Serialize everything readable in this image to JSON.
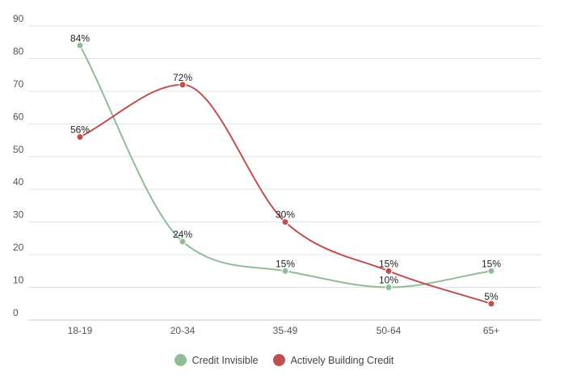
{
  "chart_data": {
    "type": "line",
    "categories": [
      "18-19",
      "20-34",
      "35-49",
      "50-64",
      "65+"
    ],
    "ylim": [
      0,
      90
    ],
    "yticks": [
      0,
      10,
      20,
      30,
      40,
      50,
      60,
      70,
      80,
      90
    ],
    "grid": true,
    "legend_position": "bottom",
    "series": [
      {
        "name": "Credit Invisible",
        "color": "#8fbc9a",
        "values": [
          84,
          24,
          15,
          10,
          15
        ],
        "labels": [
          "84%",
          "24%",
          "15%",
          "10%",
          "15%"
        ]
      },
      {
        "name": "Actively Building Credit",
        "color": "#c0504d",
        "values": [
          56,
          72,
          30,
          15,
          5
        ],
        "labels": [
          "56%",
          "72%",
          "30%",
          "15%",
          "5%"
        ]
      }
    ]
  }
}
